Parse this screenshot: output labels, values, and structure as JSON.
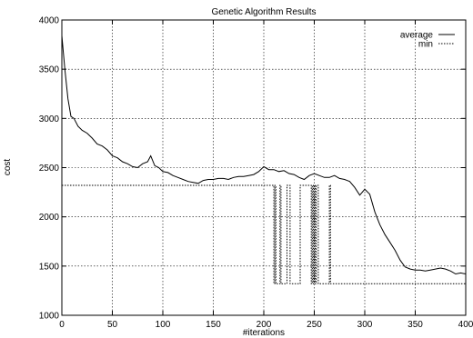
{
  "chart_data": {
    "type": "line",
    "title": "Genetic Algorithm Results",
    "xlabel": "#iterations",
    "ylabel": "cost",
    "xlim": [
      0,
      400
    ],
    "ylim": [
      1000,
      4000
    ],
    "x_ticks": [
      0,
      50,
      100,
      150,
      200,
      250,
      300,
      350,
      400
    ],
    "y_ticks": [
      1000,
      1500,
      2000,
      2500,
      3000,
      3500,
      4000
    ],
    "grid": "on",
    "legend_position": "top-right",
    "series": [
      {
        "name": "average",
        "style": "solid",
        "color": "#000000",
        "points": [
          [
            0,
            3840
          ],
          [
            3,
            3500
          ],
          [
            6,
            3200
          ],
          [
            9,
            3020
          ],
          [
            12,
            3000
          ],
          [
            16,
            2920
          ],
          [
            20,
            2880
          ],
          [
            25,
            2850
          ],
          [
            30,
            2800
          ],
          [
            35,
            2740
          ],
          [
            40,
            2720
          ],
          [
            45,
            2680
          ],
          [
            50,
            2620
          ],
          [
            55,
            2600
          ],
          [
            60,
            2560
          ],
          [
            65,
            2540
          ],
          [
            70,
            2510
          ],
          [
            75,
            2500
          ],
          [
            80,
            2540
          ],
          [
            85,
            2560
          ],
          [
            88,
            2620
          ],
          [
            92,
            2520
          ],
          [
            96,
            2500
          ],
          [
            100,
            2460
          ],
          [
            105,
            2450
          ],
          [
            110,
            2420
          ],
          [
            115,
            2400
          ],
          [
            120,
            2380
          ],
          [
            125,
            2360
          ],
          [
            130,
            2350
          ],
          [
            135,
            2340
          ],
          [
            140,
            2370
          ],
          [
            145,
            2380
          ],
          [
            150,
            2380
          ],
          [
            155,
            2390
          ],
          [
            160,
            2390
          ],
          [
            165,
            2380
          ],
          [
            170,
            2400
          ],
          [
            175,
            2410
          ],
          [
            180,
            2410
          ],
          [
            185,
            2420
          ],
          [
            190,
            2430
          ],
          [
            195,
            2460
          ],
          [
            200,
            2510
          ],
          [
            205,
            2480
          ],
          [
            210,
            2480
          ],
          [
            215,
            2460
          ],
          [
            220,
            2470
          ],
          [
            225,
            2440
          ],
          [
            230,
            2430
          ],
          [
            235,
            2400
          ],
          [
            240,
            2380
          ],
          [
            245,
            2420
          ],
          [
            250,
            2440
          ],
          [
            255,
            2420
          ],
          [
            260,
            2400
          ],
          [
            265,
            2400
          ],
          [
            270,
            2420
          ],
          [
            275,
            2390
          ],
          [
            280,
            2380
          ],
          [
            285,
            2360
          ],
          [
            290,
            2300
          ],
          [
            295,
            2220
          ],
          [
            300,
            2280
          ],
          [
            305,
            2230
          ],
          [
            310,
            2050
          ],
          [
            315,
            1920
          ],
          [
            320,
            1820
          ],
          [
            325,
            1740
          ],
          [
            330,
            1660
          ],
          [
            335,
            1560
          ],
          [
            340,
            1490
          ],
          [
            345,
            1470
          ],
          [
            350,
            1460
          ],
          [
            355,
            1460
          ],
          [
            360,
            1450
          ],
          [
            365,
            1460
          ],
          [
            370,
            1470
          ],
          [
            375,
            1480
          ],
          [
            380,
            1470
          ],
          [
            385,
            1450
          ],
          [
            390,
            1420
          ],
          [
            395,
            1430
          ],
          [
            400,
            1420
          ]
        ]
      },
      {
        "name": "min",
        "style": "dotted",
        "color": "#000000",
        "points": [
          [
            0,
            2320
          ],
          [
            200,
            2320
          ],
          [
            210,
            2320
          ],
          [
            210,
            1320
          ],
          [
            211,
            1320
          ],
          [
            211,
            2320
          ],
          [
            212,
            2320
          ],
          [
            212,
            1320
          ],
          [
            216,
            1320
          ],
          [
            216,
            2320
          ],
          [
            217,
            2320
          ],
          [
            217,
            1320
          ],
          [
            223,
            1320
          ],
          [
            223,
            2320
          ],
          [
            226,
            2320
          ],
          [
            226,
            1320
          ],
          [
            236,
            1320
          ],
          [
            236,
            2320
          ],
          [
            247,
            2320
          ],
          [
            247,
            1320
          ],
          [
            248,
            1320
          ],
          [
            248,
            2320
          ],
          [
            249,
            2320
          ],
          [
            249,
            1320
          ],
          [
            250,
            1320
          ],
          [
            250,
            2320
          ],
          [
            251,
            2320
          ],
          [
            251,
            1320
          ],
          [
            252,
            1320
          ],
          [
            252,
            2320
          ],
          [
            254,
            2320
          ],
          [
            254,
            1320
          ],
          [
            265,
            1320
          ],
          [
            265,
            2320
          ],
          [
            266,
            2320
          ],
          [
            266,
            1320
          ],
          [
            400,
            1320
          ]
        ]
      }
    ]
  }
}
